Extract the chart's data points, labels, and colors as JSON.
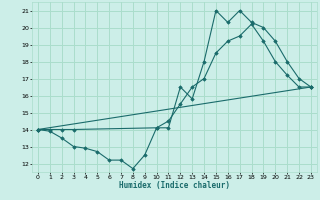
{
  "title": "",
  "xlabel": "Humidex (Indice chaleur)",
  "bg_color": "#cceee8",
  "grid_color": "#aaddcc",
  "line_color": "#1a6b6b",
  "xlim": [
    -0.5,
    23.5
  ],
  "ylim": [
    11.5,
    21.5
  ],
  "xticks": [
    0,
    1,
    2,
    3,
    4,
    5,
    6,
    7,
    8,
    9,
    10,
    11,
    12,
    13,
    14,
    15,
    16,
    17,
    18,
    19,
    20,
    21,
    22,
    23
  ],
  "yticks": [
    12,
    13,
    14,
    15,
    16,
    17,
    18,
    19,
    20,
    21
  ],
  "line1_x": [
    0,
    1,
    2,
    3,
    4,
    5,
    6,
    7,
    8,
    9,
    10,
    11,
    12,
    13,
    14,
    15,
    16,
    17,
    18,
    19,
    20,
    21,
    22,
    23
  ],
  "line1_y": [
    14.0,
    13.9,
    13.5,
    13.0,
    12.9,
    12.7,
    12.2,
    12.2,
    11.7,
    12.5,
    14.1,
    14.1,
    16.5,
    15.8,
    18.0,
    21.0,
    20.3,
    21.0,
    20.3,
    20.0,
    19.2,
    18.0,
    17.0,
    16.5
  ],
  "line2_x": [
    0,
    1,
    2,
    3,
    10,
    11,
    12,
    13,
    14,
    15,
    16,
    17,
    18,
    19,
    20,
    21,
    22,
    23
  ],
  "line2_y": [
    14.0,
    14.0,
    14.0,
    14.0,
    14.1,
    14.5,
    15.5,
    16.5,
    17.0,
    18.5,
    19.2,
    19.5,
    20.2,
    19.2,
    18.0,
    17.2,
    16.5,
    16.5
  ],
  "line3_x": [
    0,
    23
  ],
  "line3_y": [
    14.0,
    16.5
  ]
}
